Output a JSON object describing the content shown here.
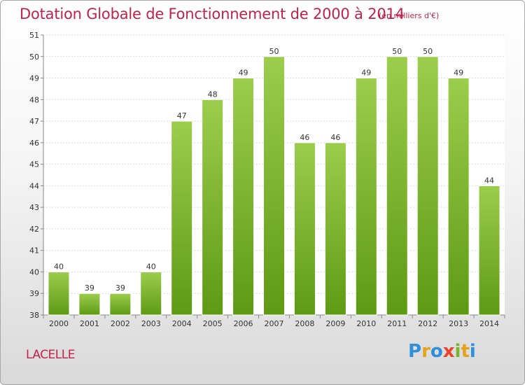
{
  "page": {
    "title": "Dotation Globale de Fonctionnement de 2000 à 2014",
    "unit_note": "(en milliers d'€)",
    "commune": "LACELLE",
    "logo": {
      "text": "Proxiti",
      "letters": [
        {
          "ch": "P",
          "color": "#2f8fd8"
        },
        {
          "ch": "r",
          "color": "#e5a31a"
        },
        {
          "ch": "o",
          "color": "#2f8fd8"
        },
        {
          "ch": "x",
          "color": "#e8442a"
        },
        {
          "ch": "i",
          "color": "#7ab32e"
        },
        {
          "ch": "t",
          "color": "#e5a31a"
        },
        {
          "ch": "i",
          "color": "#2f8fd8"
        }
      ]
    },
    "colors": {
      "title": "#c1224a",
      "bar_top": "#9ccd4d",
      "bar_bottom": "#5e9a14",
      "grid": "#dcdcdc",
      "axis_text": "#333333"
    }
  },
  "chart_data": {
    "type": "bar",
    "title": "Dotation Globale de Fonctionnement de 2000 à 2014",
    "xlabel": "",
    "ylabel": "",
    "ylim": [
      38,
      51
    ],
    "yticks": [
      38,
      39,
      40,
      41,
      42,
      43,
      44,
      45,
      46,
      47,
      48,
      49,
      50,
      51
    ],
    "grid": true,
    "categories": [
      "2000",
      "2001",
      "2002",
      "2003",
      "2004",
      "2005",
      "2006",
      "2007",
      "2008",
      "2009",
      "2010",
      "2011",
      "2012",
      "2013",
      "2014"
    ],
    "values": [
      40,
      39,
      39,
      40,
      47,
      48,
      49,
      50,
      46,
      46,
      49,
      50,
      50,
      49,
      44
    ]
  }
}
